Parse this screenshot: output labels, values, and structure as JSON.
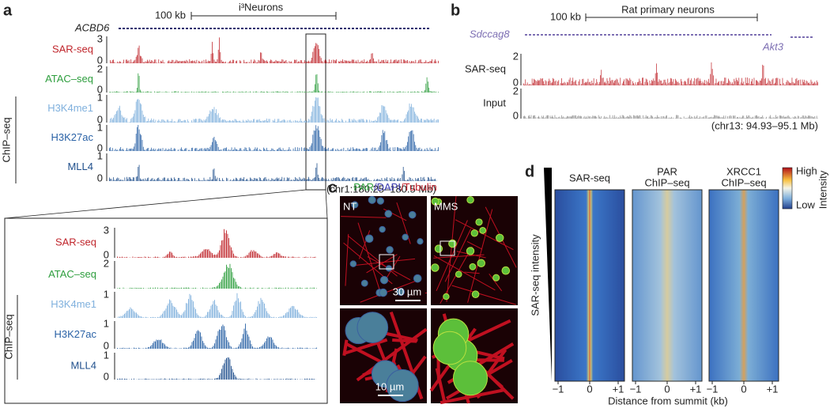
{
  "panel_a": {
    "letter": "a",
    "scale_label": "100 kb",
    "cell_label": "i³Neurons",
    "gene": "ACBD6",
    "group_label": "ChIP–seq",
    "tracks": [
      {
        "label": "SAR-seq",
        "top": "3",
        "bottom": "0"
      },
      {
        "label": "ATAC–seq",
        "top": "2",
        "bottom": "0"
      },
      {
        "label": "H3K4me1",
        "top": "1",
        "bottom": "0"
      },
      {
        "label": "H3K27ac",
        "top": "1",
        "bottom": "0"
      },
      {
        "label": "MLL4",
        "top": "1",
        "bottom": "0"
      }
    ],
    "coordinates": "(chr1:180.25–180.5 Mb)",
    "zoom": {
      "group_label": "ChIP–seq",
      "tracks": [
        {
          "label": "SAR-seq",
          "top": "3",
          "bottom": "0"
        },
        {
          "label": "ATAC–seq",
          "top": "2"
        },
        {
          "label": "H3K4me1",
          "top": "1"
        },
        {
          "label": "H3K27ac",
          "top": "1",
          "bottom": "0"
        },
        {
          "label": "MLL4",
          "top": "1",
          "bottom": "0"
        }
      ]
    }
  },
  "panel_b": {
    "letter": "b",
    "scale_label": "100 kb",
    "cell_label": "Rat primary neurons",
    "genes": [
      "Sdccag8",
      "Akt3"
    ],
    "tracks": [
      {
        "label": "SAR-seq",
        "top": "2",
        "bottom": "0"
      },
      {
        "label": "Input",
        "top": "2",
        "bottom": "0"
      }
    ],
    "coordinates": "(chr13: 94.93–95.1 Mb)"
  },
  "panel_c": {
    "letter": "c",
    "stain": [
      "PAR",
      "/DAPI",
      "/Tubulin"
    ],
    "conditions": [
      "NT",
      "MMS"
    ],
    "scale_bars": [
      "30 µm",
      "10 µm"
    ]
  },
  "panel_d": {
    "letter": "d",
    "heatmaps": [
      [
        "SAR-seq"
      ],
      [
        "PAR",
        "ChIP–seq"
      ],
      [
        "XRCC1",
        "ChIP–seq"
      ]
    ],
    "colorbar": {
      "high": "High",
      "low": "Low",
      "title": "Intensity"
    },
    "y_label": "SAR-seq intensity",
    "x_ticks": [
      "−1",
      "0",
      "+1"
    ],
    "x_label": "Distance from summit (kb)"
  }
}
